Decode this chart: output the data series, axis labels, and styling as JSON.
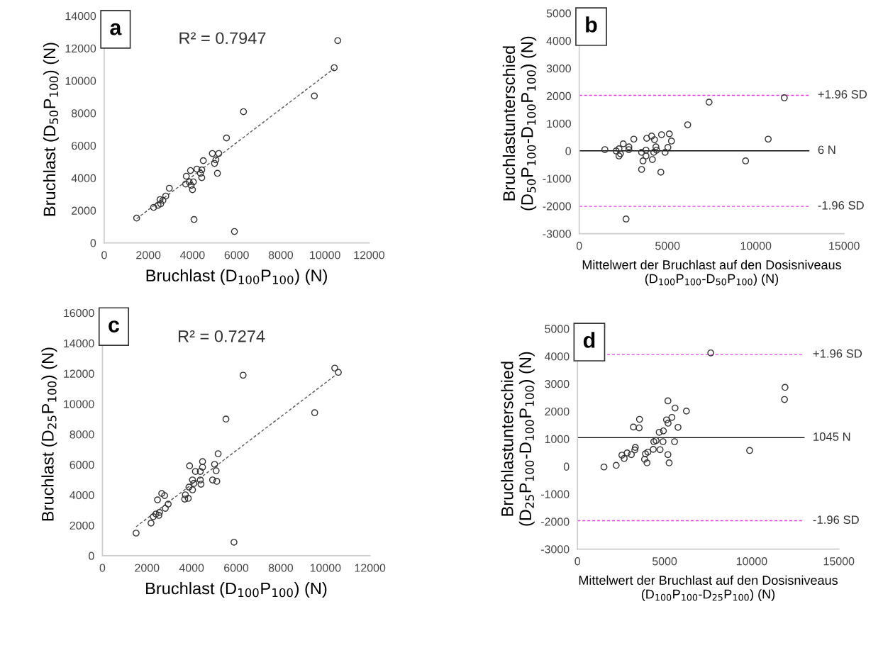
{
  "chart_data": [
    {
      "type": "scatter",
      "xlabel": "Bruchlast (D$_{100}$P$_{100}$) (N)",
      "ylabel": "Bruchlast (D$_{50}$P$_{100}$) (N)",
      "annotations": [
        "a",
        "R² = 0.7947"
      ],
      "xlim": [
        0,
        12000
      ],
      "xticks": [
        0,
        2000,
        4000,
        6000,
        8000,
        10000,
        12000
      ],
      "ylim": [
        0,
        14000
      ],
      "yticks": [
        0,
        2000,
        4000,
        6000,
        8000,
        10000,
        12000,
        14000
      ],
      "grid": false,
      "marker": "circle",
      "series": [
        {
          "color": "#333333",
          "x": [
            10580,
            10420,
            9520,
            6310,
            5540,
            4900,
            5190,
            4490,
            5060,
            5000,
            5130,
            3910,
            4200,
            4420,
            4360,
            4420,
            3720,
            3850,
            4040,
            3690,
            3940,
            4000,
            2950,
            2790,
            2530,
            2660,
            2440,
            2240,
            2560,
            1470,
            4070,
            5900
          ],
          "values": [
            12470,
            10800,
            9060,
            8090,
            6470,
            5510,
            5510,
            5070,
            5120,
            4900,
            4290,
            4460,
            4550,
            4500,
            4290,
            4020,
            4110,
            3760,
            3760,
            3630,
            3540,
            3280,
            3370,
            2890,
            2670,
            2620,
            2320,
            2190,
            2410,
            1530,
            1440,
            700
          ]
        },
        {
          "type": "line",
          "line_style": "dashed",
          "marker": "none",
          "color": "#555555",
          "x": [
            1470,
            10420
          ],
          "values": [
            1490,
            10760
          ]
        }
      ]
    },
    {
      "type": "scatter",
      "xlabel": "Mittelwert der Bruchlast auf den Dosisniveaus\n(D$_{100}$P$_{100}$-D$_{50}$P$_{100}$) (N)",
      "ylabel": "Bruchlastunterschied\n(D$_{50}$P$_{100}$-D$_{100}$P$_{100}$) (N)",
      "annotations": [
        "b"
      ],
      "xlim": [
        0,
        15000
      ],
      "xticks": [
        0,
        5000,
        10000,
        15000
      ],
      "ylim": [
        -3000,
        5000
      ],
      "yticks": [
        -3000,
        -2000,
        -1000,
        0,
        1000,
        2000,
        3000,
        4000,
        5000
      ],
      "grid": false,
      "marker": "circle",
      "ref_lines": [
        {
          "axis": "y",
          "value": 2020,
          "label": "+1.96 SD",
          "color": "#e040e0",
          "line_style": "dashed"
        },
        {
          "axis": "y",
          "value": 6,
          "label": "6 N",
          "color": "#000000",
          "line_style": "solid"
        },
        {
          "axis": "y",
          "value": -2010,
          "label": "-1.96 SD",
          "color": "#e040e0",
          "line_style": "dashed"
        }
      ],
      "series": [
        {
          "color": "#333333",
          "x": [
            1450,
            2090,
            2250,
            2330,
            2490,
            2250,
            2810,
            2810,
            3090,
            3530,
            3610,
            3530,
            3780,
            3820,
            4100,
            4260,
            4340,
            4380,
            3780,
            4140,
            4220,
            4620,
            4660,
            5100,
            5220,
            5020,
            4860,
            6140,
            7350,
            11610,
            10700,
            9420,
            2650
          ],
          "values": [
            50,
            0,
            -180,
            -100,
            260,
            80,
            150,
            50,
            430,
            -50,
            -360,
            -670,
            30,
            460,
            540,
            410,
            150,
            30,
            -180,
            -310,
            -50,
            -770,
            590,
            620,
            360,
            130,
            -50,
            950,
            1770,
            1930,
            430,
            -360,
            -2470
          ]
        }
      ]
    },
    {
      "type": "scatter",
      "xlabel": "Bruchlast (D$_{100}$P$_{100}$) (N)",
      "ylabel": "Bruchlast (D$_{25}$P$_{100}$) (N)",
      "annotations": [
        "c",
        "R² = 0.7274"
      ],
      "xlim": [
        0,
        12000
      ],
      "xticks": [
        0,
        2000,
        4000,
        6000,
        8000,
        10000,
        12000
      ],
      "ylim": [
        0,
        16000
      ],
      "yticks": [
        0,
        2000,
        4000,
        6000,
        8000,
        10000,
        12000,
        14000,
        16000
      ],
      "grid": false,
      "marker": "circle",
      "series": [
        {
          "color": "#333333",
          "x": [
            10420,
            10580,
            6310,
            9520,
            5540,
            5190,
            4490,
            4490,
            3910,
            5030,
            5100,
            4170,
            4390,
            4940,
            5130,
            4040,
            4390,
            4420,
            4100,
            3880,
            4040,
            3720,
            3850,
            3690,
            2660,
            2790,
            2470,
            2950,
            2820,
            2560,
            2400,
            2280,
            2530,
            2180,
            1510,
            5900
          ],
          "values": [
            12360,
            12080,
            11890,
            9420,
            9000,
            6720,
            6200,
            5830,
            5920,
            6020,
            5600,
            5550,
            5550,
            4990,
            4900,
            4990,
            4990,
            4710,
            4760,
            4520,
            4340,
            4010,
            3780,
            3730,
            4100,
            3960,
            3680,
            3400,
            3120,
            2850,
            2750,
            2570,
            2660,
            2150,
            1490,
            890
          ]
        },
        {
          "type": "line",
          "line_style": "dashed",
          "marker": "none",
          "color": "#555555",
          "x": [
            1510,
            10450
          ],
          "values": [
            1910,
            11890
          ]
        }
      ]
    },
    {
      "type": "scatter",
      "xlabel": "Mittelwert der Bruchlast auf den Dosisniveaus\n(D$_{100}$P$_{100}$-D$_{25}$P$_{100}$) (N)",
      "ylabel": "Bruchlastunterschied\n(D$_{25}$P$_{100}$-D$_{100}$P$_{100}$) (N)",
      "annotations": [
        "d"
      ],
      "xlim": [
        0,
        15000
      ],
      "xticks": [
        0,
        5000,
        10000,
        15000
      ],
      "ylim": [
        -3000,
        5000
      ],
      "yticks": [
        -3000,
        -2000,
        -1000,
        0,
        1000,
        2000,
        3000,
        4000,
        5000
      ],
      "grid": false,
      "marker": "circle",
      "ref_lines": [
        {
          "axis": "y",
          "value": 4060,
          "label": "+1.96 SD",
          "color": "#e040e0",
          "line_style": "dashed"
        },
        {
          "axis": "y",
          "value": 1045,
          "label": "1045 N",
          "color": "#000000",
          "line_style": "solid"
        },
        {
          "axis": "y",
          "value": -1970,
          "label": "-1.96 SD",
          "color": "#e040e0",
          "line_style": "dashed"
        }
      ],
      "series": [
        {
          "color": "#333333",
          "x": [
            7650,
            11910,
            11880,
            5190,
            5600,
            6250,
            3560,
            5420,
            5110,
            5200,
            3210,
            3540,
            5770,
            4690,
            4930,
            4380,
            4510,
            4910,
            5570,
            3320,
            3290,
            4350,
            4740,
            9880,
            2850,
            3090,
            4040,
            3900,
            2550,
            2680,
            5190,
            3850,
            3990,
            5260,
            2220,
            1520
          ],
          "values": [
            4120,
            2870,
            2430,
            2380,
            2120,
            2010,
            1710,
            1780,
            1690,
            1570,
            1430,
            1400,
            1420,
            1240,
            1290,
            900,
            940,
            900,
            900,
            690,
            600,
            620,
            610,
            580,
            490,
            430,
            520,
            460,
            410,
            290,
            430,
            260,
            130,
            130,
            40,
            -20
          ]
        }
      ]
    }
  ]
}
